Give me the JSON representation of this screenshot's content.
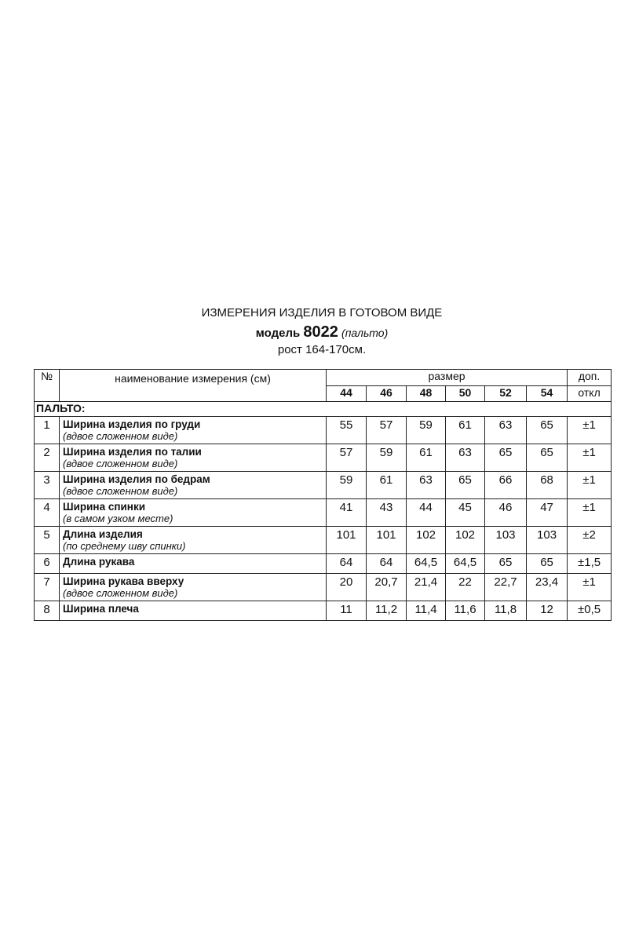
{
  "title": "ИЗМЕРЕНИЯ ИЗДЕЛИЯ В ГОТОВОМ ВИДЕ",
  "model_label": "модель",
  "model_number": "8022",
  "model_type": "(пальто)",
  "height": "рост 164-170см.",
  "table": {
    "col_no": "№",
    "col_name": "наименование измерения (см)",
    "col_size": "размер",
    "col_tol_1": "доп.",
    "col_tol_2": "откл",
    "sizes": [
      "44",
      "46",
      "48",
      "50",
      "52",
      "54"
    ],
    "section": "ПАЛЬТО:",
    "rows": [
      {
        "no": "1",
        "name": "Ширина изделия по груди",
        "note": "(вдвое сложенном виде)",
        "values": [
          "55",
          "57",
          "59",
          "61",
          "63",
          "65"
        ],
        "tol": "±1"
      },
      {
        "no": "2",
        "name": "Ширина изделия по талии",
        "note": "(вдвое сложенном виде)",
        "values": [
          "57",
          "59",
          "61",
          "63",
          "65",
          "65"
        ],
        "tol": "±1"
      },
      {
        "no": "3",
        "name": "Ширина изделия по бедрам",
        "note": "(вдвое сложенном виде)",
        "values": [
          "59",
          "61",
          "63",
          "65",
          "66",
          "68"
        ],
        "tol": "±1"
      },
      {
        "no": "4",
        "name": "Ширина спинки",
        "note": "(в самом узком месте)",
        "values": [
          "41",
          "43",
          "44",
          "45",
          "46",
          "47"
        ],
        "tol": "±1"
      },
      {
        "no": "5",
        "name": "Длина изделия",
        "note": "(по среднему шву спинки)",
        "values": [
          "101",
          "101",
          "102",
          "102",
          "103",
          "103"
        ],
        "tol": "±2"
      },
      {
        "no": "6",
        "name": "Длина рукава",
        "note": "",
        "values": [
          "64",
          "64",
          "64,5",
          "64,5",
          "65",
          "65"
        ],
        "tol": "±1,5"
      },
      {
        "no": "7",
        "name": "Ширина рукава вверху",
        "note": "(вдвое сложенном виде)",
        "values": [
          "20",
          "20,7",
          "21,4",
          "22",
          "22,7",
          "23,4"
        ],
        "tol": "±1"
      },
      {
        "no": "8",
        "name": "Ширина плеча",
        "note": "",
        "values": [
          "11",
          "11,2",
          "11,4",
          "11,6",
          "11,8",
          "12"
        ],
        "tol": "±0,5"
      }
    ]
  }
}
